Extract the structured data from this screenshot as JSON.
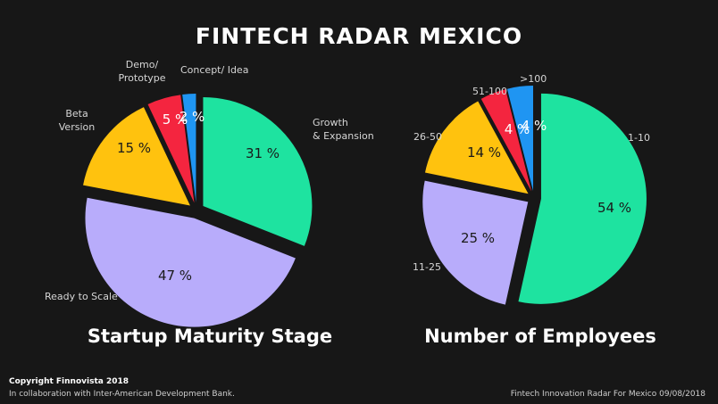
{
  "title": "FINTECH RADAR MEXICO",
  "footer": {
    "copyright": "Copyright Finnovista 2018",
    "collaboration": "In collaboration with Inter-American Development Bank.",
    "source": "Fintech Innovation Radar For Mexico 09/08/2018"
  },
  "chart_data": [
    {
      "type": "pie",
      "title": "Startup Maturity Stage",
      "categories": [
        "Growth & Expansion",
        "Ready to Scale",
        "Beta Version",
        "Demo/ Prototype",
        "Concept/ Idea"
      ],
      "values": [
        31,
        47,
        15,
        5,
        2
      ],
      "value_labels": [
        "31 %",
        "47 %",
        "15 %",
        "5 %",
        "2 %"
      ],
      "colors": [
        "#1ee3a0",
        "#b8acfb",
        "#ffc20e",
        "#f4253f",
        "#1f95f2"
      ],
      "exploded": true
    },
    {
      "type": "pie",
      "title": "Number of Employees",
      "categories": [
        "1-10",
        "11-25",
        "26-50",
        "51-100",
        ">100"
      ],
      "values": [
        54,
        25,
        14,
        4,
        4
      ],
      "value_labels": [
        "54 %",
        "25 %",
        "14 %",
        "4 %",
        "4 %"
      ],
      "colors": [
        "#1ee3a0",
        "#b8acfb",
        "#ffc20e",
        "#f4253f",
        "#1f95f2"
      ],
      "exploded": true
    }
  ]
}
